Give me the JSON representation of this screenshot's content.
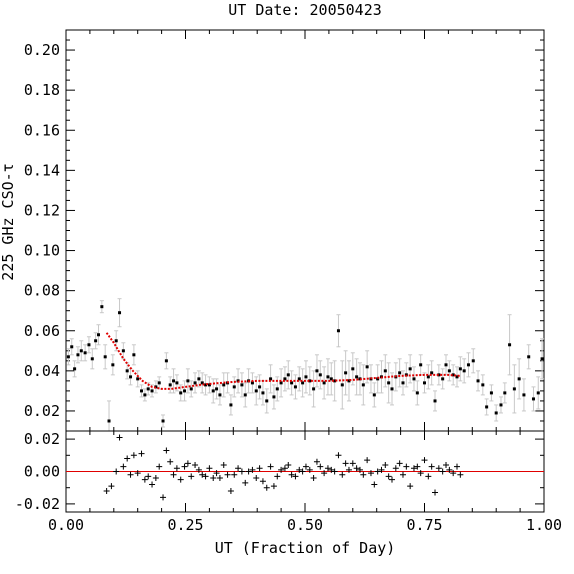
{
  "chart_data": [
    {
      "type": "scatter",
      "panel": "main",
      "title": "UT Date: 20050423",
      "xlabel": "UT (Fraction of Day)",
      "ylabel": "225 GHz CSO-τ",
      "xlim": [
        0.0,
        1.0
      ],
      "ylim": [
        0.01,
        0.21
      ],
      "xticks": [
        "0.00",
        "0.25",
        "0.50",
        "0.75",
        "1.00"
      ],
      "yticks": [
        "0.02",
        "0.04",
        "0.06",
        "0.08",
        "0.10",
        "0.12",
        "0.14",
        "0.16",
        "0.18",
        "0.20"
      ],
      "grid": false,
      "colors": {
        "points": "#000000",
        "errorbars": "#c8c8c8",
        "fit": "#e00000"
      },
      "series": [
        {
          "type": "scatter-errorbars",
          "x": [
            0.005,
            0.012,
            0.018,
            0.025,
            0.032,
            0.04,
            0.048,
            0.055,
            0.062,
            0.068,
            0.075,
            0.082,
            0.09,
            0.098,
            0.105,
            0.112,
            0.12,
            0.128,
            0.135,
            0.142,
            0.15,
            0.158,
            0.165,
            0.172,
            0.18,
            0.188,
            0.195,
            0.203,
            0.21,
            0.218,
            0.225,
            0.232,
            0.24,
            0.248,
            0.255,
            0.262,
            0.27,
            0.278,
            0.285,
            0.292,
            0.3,
            0.308,
            0.315,
            0.322,
            0.33,
            0.338,
            0.345,
            0.352,
            0.36,
            0.368,
            0.375,
            0.382,
            0.39,
            0.398,
            0.405,
            0.412,
            0.42,
            0.428,
            0.435,
            0.442,
            0.45,
            0.458,
            0.465,
            0.472,
            0.48,
            0.488,
            0.495,
            0.502,
            0.51,
            0.518,
            0.525,
            0.532,
            0.54,
            0.548,
            0.555,
            0.562,
            0.57,
            0.578,
            0.585,
            0.592,
            0.6,
            0.608,
            0.615,
            0.622,
            0.63,
            0.638,
            0.645,
            0.652,
            0.66,
            0.668,
            0.675,
            0.682,
            0.69,
            0.698,
            0.705,
            0.712,
            0.72,
            0.728,
            0.735,
            0.742,
            0.75,
            0.758,
            0.765,
            0.772,
            0.78,
            0.788,
            0.795,
            0.802,
            0.81,
            0.818,
            0.825,
            0.833,
            0.842,
            0.852,
            0.862,
            0.872,
            0.88,
            0.89,
            0.9,
            0.91,
            0.918,
            0.928,
            0.938,
            0.948,
            0.958,
            0.968,
            0.978,
            0.988,
            0.996
          ],
          "y": [
            0.047,
            0.052,
            0.041,
            0.048,
            0.05,
            0.049,
            0.053,
            0.046,
            0.055,
            0.058,
            0.072,
            0.047,
            0.015,
            0.043,
            0.055,
            0.069,
            0.05,
            0.04,
            0.037,
            0.048,
            0.036,
            0.03,
            0.028,
            0.031,
            0.03,
            0.032,
            0.034,
            0.015,
            0.045,
            0.033,
            0.035,
            0.034,
            0.029,
            0.03,
            0.035,
            0.031,
            0.034,
            0.036,
            0.034,
            0.033,
            0.033,
            0.03,
            0.031,
            0.028,
            0.033,
            0.034,
            0.023,
            0.032,
            0.035,
            0.033,
            0.028,
            0.035,
            0.034,
            0.03,
            0.032,
            0.029,
            0.025,
            0.036,
            0.027,
            0.031,
            0.034,
            0.036,
            0.038,
            0.034,
            0.032,
            0.036,
            0.034,
            0.037,
            0.035,
            0.031,
            0.04,
            0.038,
            0.034,
            0.037,
            0.036,
            0.035,
            0.06,
            0.033,
            0.039,
            0.035,
            0.041,
            0.037,
            0.036,
            0.033,
            0.042,
            0.036,
            0.028,
            0.036,
            0.037,
            0.04,
            0.034,
            0.031,
            0.037,
            0.039,
            0.034,
            0.038,
            0.041,
            0.036,
            0.029,
            0.043,
            0.034,
            0.037,
            0.039,
            0.025,
            0.038,
            0.036,
            0.043,
            0.04,
            0.038,
            0.037,
            0.041,
            0.04,
            0.043,
            0.045,
            0.035,
            0.033,
            0.022,
            0.029,
            0.019,
            0.023,
            0.029,
            0.053,
            0.031,
            0.036,
            0.028,
            0.047,
            0.026,
            0.029,
            0.046
          ],
          "yerr": [
            0.004,
            0.004,
            0.004,
            0.004,
            0.005,
            0.004,
            0.004,
            0.005,
            0.004,
            0.005,
            0.003,
            0.006,
            0.01,
            0.005,
            0.005,
            0.007,
            0.004,
            0.004,
            0.004,
            0.005,
            0.004,
            0.003,
            0.003,
            0.003,
            0.003,
            0.003,
            0.003,
            0.003,
            0.004,
            0.004,
            0.006,
            0.004,
            0.004,
            0.005,
            0.006,
            0.004,
            0.005,
            0.004,
            0.005,
            0.005,
            0.004,
            0.006,
            0.005,
            0.005,
            0.006,
            0.005,
            0.005,
            0.005,
            0.006,
            0.006,
            0.006,
            0.006,
            0.005,
            0.007,
            0.006,
            0.006,
            0.006,
            0.007,
            0.006,
            0.006,
            0.007,
            0.006,
            0.007,
            0.006,
            0.006,
            0.006,
            0.007,
            0.008,
            0.007,
            0.009,
            0.008,
            0.007,
            0.008,
            0.009,
            0.008,
            0.01,
            0.008,
            0.012,
            0.011,
            0.01,
            0.008,
            0.009,
            0.008,
            0.01,
            0.008,
            0.007,
            0.006,
            0.007,
            0.008,
            0.008,
            0.01,
            0.008,
            0.007,
            0.007,
            0.006,
            0.006,
            0.007,
            0.006,
            0.006,
            0.005,
            0.005,
            0.006,
            0.006,
            0.005,
            0.005,
            0.005,
            0.005,
            0.005,
            0.005,
            0.005,
            0.006,
            0.006,
            0.006,
            0.006,
            0.005,
            0.005,
            0.004,
            0.004,
            0.004,
            0.004,
            0.005,
            0.015,
            0.012,
            0.01,
            0.008,
            0.006,
            0.006,
            0.008,
            0.01
          ]
        },
        {
          "type": "line",
          "x": [
            0.085,
            0.1,
            0.12,
            0.14,
            0.16,
            0.18,
            0.2,
            0.22,
            0.25,
            0.28,
            0.3,
            0.35,
            0.4,
            0.45,
            0.5,
            0.55,
            0.6,
            0.65,
            0.7,
            0.75,
            0.8,
            0.825
          ],
          "y": [
            0.059,
            0.054,
            0.046,
            0.04,
            0.035,
            0.032,
            0.031,
            0.031,
            0.032,
            0.033,
            0.0335,
            0.0345,
            0.035,
            0.035,
            0.035,
            0.035,
            0.0355,
            0.0365,
            0.0375,
            0.038,
            0.038,
            0.0375
          ]
        }
      ]
    },
    {
      "type": "scatter",
      "panel": "residuals",
      "xlim": [
        0.0,
        1.0
      ],
      "ylim": [
        -0.025,
        0.025
      ],
      "yticks": [
        "0.02",
        "0.00",
        "-0.02"
      ],
      "reference_line": 0.0,
      "colors": {
        "points": "#000000",
        "reference_line": "#e00000"
      },
      "series": [
        {
          "type": "plus",
          "x": [
            0.085,
            0.095,
            0.105,
            0.112,
            0.12,
            0.128,
            0.135,
            0.142,
            0.15,
            0.158,
            0.165,
            0.172,
            0.18,
            0.188,
            0.195,
            0.203,
            0.21,
            0.218,
            0.225,
            0.232,
            0.24,
            0.248,
            0.255,
            0.262,
            0.27,
            0.278,
            0.285,
            0.292,
            0.3,
            0.308,
            0.315,
            0.322,
            0.33,
            0.338,
            0.345,
            0.352,
            0.36,
            0.368,
            0.375,
            0.382,
            0.39,
            0.398,
            0.405,
            0.412,
            0.42,
            0.428,
            0.435,
            0.442,
            0.45,
            0.458,
            0.465,
            0.472,
            0.48,
            0.488,
            0.495,
            0.502,
            0.51,
            0.518,
            0.525,
            0.532,
            0.54,
            0.548,
            0.555,
            0.562,
            0.57,
            0.578,
            0.585,
            0.592,
            0.6,
            0.608,
            0.615,
            0.622,
            0.63,
            0.638,
            0.645,
            0.652,
            0.66,
            0.668,
            0.675,
            0.682,
            0.69,
            0.698,
            0.705,
            0.712,
            0.72,
            0.728,
            0.735,
            0.742,
            0.75,
            0.758,
            0.765,
            0.772,
            0.78,
            0.788,
            0.795,
            0.802,
            0.81,
            0.818,
            0.825
          ],
          "y": [
            -0.012,
            -0.009,
            0.0,
            0.021,
            0.003,
            0.008,
            -0.002,
            0.01,
            -0.001,
            0.011,
            -0.005,
            -0.003,
            -0.008,
            -0.004,
            0.003,
            -0.016,
            0.013,
            0.006,
            -0.002,
            0.002,
            -0.005,
            0.003,
            0.005,
            -0.003,
            0.004,
            0.001,
            -0.002,
            -0.003,
            0.002,
            -0.004,
            -0.001,
            -0.004,
            0.004,
            -0.002,
            -0.012,
            -0.002,
            0.002,
            0.0,
            -0.007,
            0.0,
            0.001,
            -0.004,
            0.002,
            -0.006,
            -0.01,
            0.003,
            -0.009,
            -0.003,
            0.001,
            0.002,
            0.004,
            -0.002,
            -0.003,
            0.001,
            0.0,
            0.003,
            0.001,
            -0.004,
            0.006,
            0.003,
            -0.001,
            0.002,
            0.001,
            0.0,
            0.01,
            -0.002,
            0.005,
            0.001,
            0.005,
            0.002,
            0.001,
            -0.002,
            0.007,
            -0.001,
            -0.008,
            0.0,
            0.001,
            0.004,
            -0.003,
            -0.005,
            0.002,
            0.005,
            -0.002,
            0.003,
            -0.009,
            0.002,
            0.003,
            -0.001,
            0.007,
            -0.003,
            0.003,
            -0.013,
            0.002,
            0.0,
            0.004,
            0.001,
            -0.001,
            0.003,
            -0.002
          ]
        }
      ]
    }
  ]
}
